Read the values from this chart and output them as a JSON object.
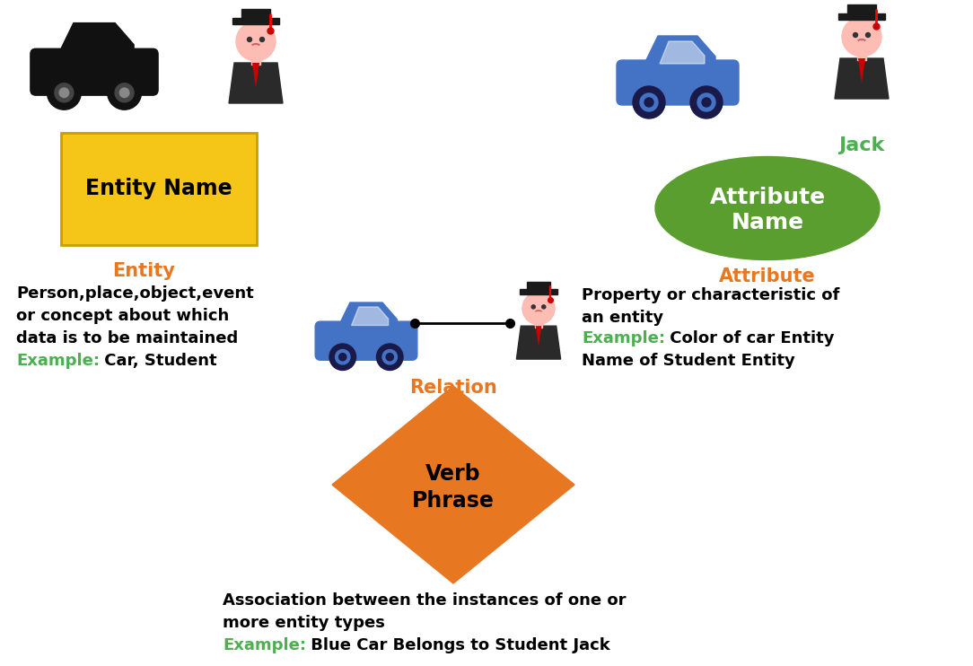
{
  "bg_color": "#ffffff",
  "orange_color": "#E87722",
  "green_color": "#4CAF50",
  "black_color": "#000000",
  "white_color": "#ffffff",
  "blue_car_color": "#4472C4",
  "blue_car_dark": "#2a5298",
  "entity_box_color": "#F5C518",
  "entity_box_edge": "#C8A000",
  "ellipse_color": "#5a9e2f",
  "diamond_color": "#E87722",
  "entity_label": "Entity",
  "entity_name_text": "Entity Name",
  "entity_desc1": "Person,place,object,event",
  "entity_desc2": "or concept about which",
  "entity_desc3": "data is to be maintained",
  "entity_example_label": "Example",
  "entity_example_text": ": Car, Student",
  "attribute_label": "Attribute",
  "jack_text": "Jack",
  "attr_desc1": "Property or characteristic of",
  "attr_desc2": "an entity",
  "attr_example_label": "Example",
  "attr_example_text": ": Color of car Entity",
  "attr_desc3": "Name of Student Entity",
  "relation_label": "Relation",
  "rel_desc1": "Association between the instances of one or",
  "rel_desc2": "more entity types",
  "rel_example_label": "Example",
  "rel_example_text": ": Blue Car Belongs to Student Jack"
}
